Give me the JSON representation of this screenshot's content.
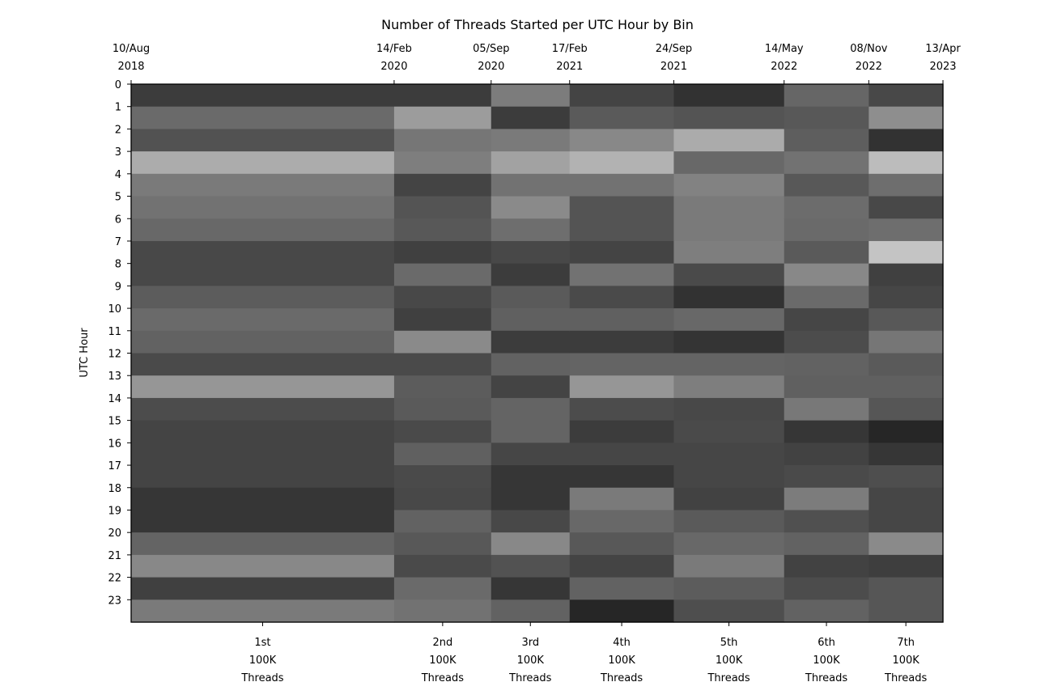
{
  "chart_data": {
    "type": "heatmap",
    "title": "Number of Threads Started per UTC Hour by Bin",
    "ylabel": "UTC Hour",
    "xlabel": "",
    "colormap": "grayscale",
    "y_ticks": [
      "0",
      "1",
      "2",
      "3",
      "4",
      "5",
      "6",
      "7",
      "8",
      "9",
      "10",
      "11",
      "12",
      "13",
      "14",
      "15",
      "16",
      "17",
      "18",
      "19",
      "20",
      "21",
      "22",
      "23"
    ],
    "top_ticks": [
      {
        "date": "2018-08-10",
        "lines": [
          "10/Aug",
          "2018"
        ]
      },
      {
        "date": "2020-02-14",
        "lines": [
          "14/Feb",
          "2020"
        ]
      },
      {
        "date": "2020-09-05",
        "lines": [
          "05/Sep",
          "2020"
        ]
      },
      {
        "date": "2021-02-17",
        "lines": [
          "17/Feb",
          "2021"
        ]
      },
      {
        "date": "2021-09-24",
        "lines": [
          "24/Sep",
          "2021"
        ]
      },
      {
        "date": "2022-05-14",
        "lines": [
          "14/May",
          "2022"
        ]
      },
      {
        "date": "2022-11-08",
        "lines": [
          "08/Nov",
          "2022"
        ]
      },
      {
        "date": "2023-04-13",
        "lines": [
          "13/Apr",
          "2023"
        ]
      }
    ],
    "bins": [
      {
        "start": "2018-08-10",
        "end": "2020-02-14",
        "label_lines": [
          "1st",
          "100K",
          "Threads"
        ],
        "cells": [
          "#3c3c3c",
          "#6a6a6a",
          "#525252",
          "#acacac",
          "#7a7a7a",
          "#727272",
          "#686868",
          "#484848",
          "#484848",
          "#5c5c5c",
          "#6a6a6a",
          "#626262",
          "#4a4a4a",
          "#969696",
          "#4c4c4c",
          "#444444",
          "#444444",
          "#444444",
          "#363636",
          "#363636",
          "#646464",
          "#888888",
          "#404040",
          "#7a7a7a"
        ]
      },
      {
        "start": "2020-02-14",
        "end": "2020-09-05",
        "label_lines": [
          "2nd",
          "100K",
          "Threads"
        ],
        "cells": [
          "#3c3c3c",
          "#9c9c9c",
          "#767676",
          "#7e7e7e",
          "#444444",
          "#545454",
          "#585858",
          "#404040",
          "#6a6a6a",
          "#484848",
          "#404040",
          "#8a8a8a",
          "#4a4a4a",
          "#5c5c5c",
          "#5a5a5a",
          "#4a4a4a",
          "#606060",
          "#4a4a4a",
          "#484848",
          "#626262",
          "#585858",
          "#4a4a4a",
          "#6a6a6a",
          "#727272"
        ]
      },
      {
        "start": "2020-09-05",
        "end": "2021-02-17",
        "label_lines": [
          "3rd",
          "100K",
          "Threads"
        ],
        "cells": [
          "#7c7c7c",
          "#3c3c3c",
          "#7a7a7a",
          "#a2a2a2",
          "#727272",
          "#8a8a8a",
          "#6e6e6e",
          "#484848",
          "#3c3c3c",
          "#5a5a5a",
          "#606060",
          "#3c3c3c",
          "#626262",
          "#444444",
          "#646464",
          "#646464",
          "#464646",
          "#363636",
          "#363636",
          "#484848",
          "#888888",
          "#525252",
          "#363636",
          "#626262"
        ]
      },
      {
        "start": "2021-02-17",
        "end": "2021-09-24",
        "label_lines": [
          "4th",
          "100K",
          "Threads"
        ],
        "cells": [
          "#444444",
          "#5a5a5a",
          "#888888",
          "#b2b2b2",
          "#727272",
          "#545454",
          "#545454",
          "#444444",
          "#727272",
          "#4a4a4a",
          "#606060",
          "#3c3c3c",
          "#646464",
          "#969696",
          "#4c4c4c",
          "#3c3c3c",
          "#464646",
          "#363636",
          "#7a7a7a",
          "#686868",
          "#585858",
          "#444444",
          "#626262",
          "#262626"
        ]
      },
      {
        "start": "2021-09-24",
        "end": "2022-05-14",
        "label_lines": [
          "5th",
          "100K",
          "Threads"
        ],
        "cells": [
          "#323232",
          "#545454",
          "#ababab",
          "#686868",
          "#828282",
          "#7a7a7a",
          "#7a7a7a",
          "#7e7e7e",
          "#4a4a4a",
          "#323232",
          "#686868",
          "#343434",
          "#646464",
          "#7e7e7e",
          "#484848",
          "#4a4a4a",
          "#464646",
          "#464646",
          "#424242",
          "#5a5a5a",
          "#686868",
          "#7a7a7a",
          "#5c5c5c",
          "#4e4e4e"
        ]
      },
      {
        "start": "2022-05-14",
        "end": "2022-11-08",
        "label_lines": [
          "6th",
          "100K",
          "Threads"
        ],
        "cells": [
          "#666666",
          "#585858",
          "#5e5e5e",
          "#727272",
          "#585858",
          "#6c6c6c",
          "#6a6a6a",
          "#5a5a5a",
          "#888888",
          "#6a6a6a",
          "#464646",
          "#4c4c4c",
          "#626262",
          "#606060",
          "#787878",
          "#363636",
          "#424242",
          "#4a4a4a",
          "#7c7c7c",
          "#505050",
          "#626262",
          "#424242",
          "#4c4c4c",
          "#626262"
        ]
      },
      {
        "start": "2022-11-08",
        "end": "2023-04-13",
        "label_lines": [
          "7th",
          "100K",
          "Threads"
        ],
        "cells": [
          "#484848",
          "#8e8e8e",
          "#323232",
          "#bcbcbc",
          "#6e6e6e",
          "#484848",
          "#6e6e6e",
          "#c4c4c4",
          "#404040",
          "#464646",
          "#585858",
          "#767676",
          "#5a5a5a",
          "#606060",
          "#565656",
          "#262626",
          "#363636",
          "#4e4e4e",
          "#464646",
          "#464646",
          "#8a8a8a",
          "#3e3e3e",
          "#565656",
          "#565656"
        ]
      }
    ]
  }
}
